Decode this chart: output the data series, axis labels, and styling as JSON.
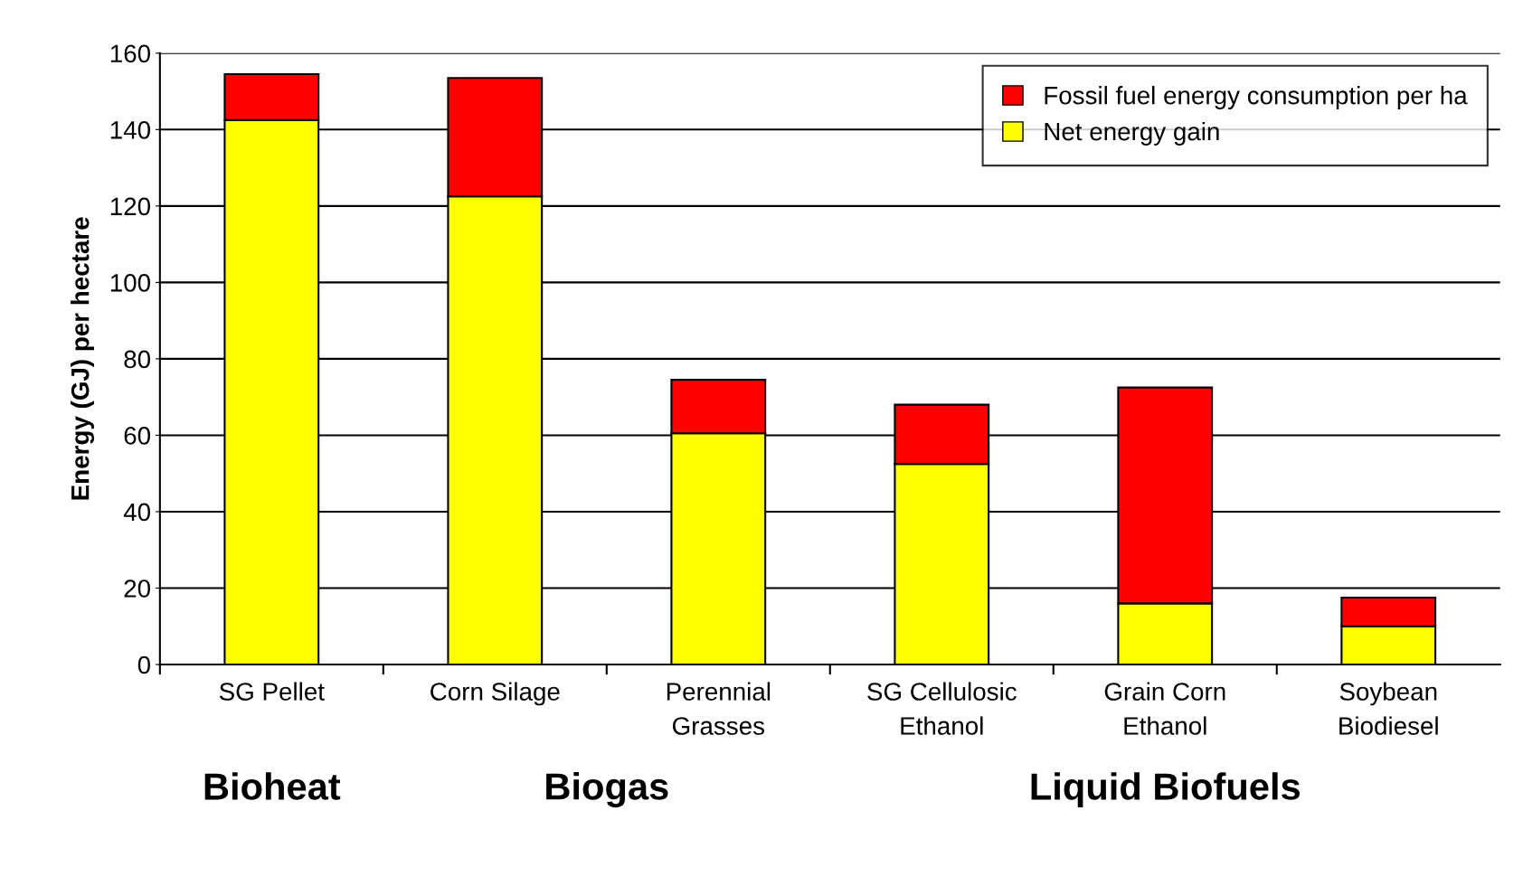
{
  "chart_data": {
    "type": "bar",
    "stacked": true,
    "ylabel": "Energy (GJ) per hectare",
    "categories": [
      "SG Pellet",
      "Corn Silage",
      "Perennial\nGrasses",
      "SG Cellulosic\nEthanol",
      "Grain Corn\nEthanol",
      "Soybean\nBiodiesel"
    ],
    "series": [
      {
        "name": "Net energy gain",
        "color": "#ffff00",
        "values": [
          142.5,
          122.5,
          60.5,
          52.5,
          16,
          10
        ]
      },
      {
        "name": "Fossil fuel energy consumption per ha",
        "color": "#ff0000",
        "values": [
          12,
          31,
          14,
          15.5,
          56.5,
          7.5
        ]
      }
    ],
    "ylim": [
      0,
      160
    ],
    "yticks": [
      0,
      20,
      40,
      60,
      80,
      100,
      120,
      140,
      160
    ],
    "grid": "y",
    "legend": "top right",
    "annotations": [
      "Bioheat",
      "Biogas",
      "Liquid Biofuels"
    ]
  }
}
